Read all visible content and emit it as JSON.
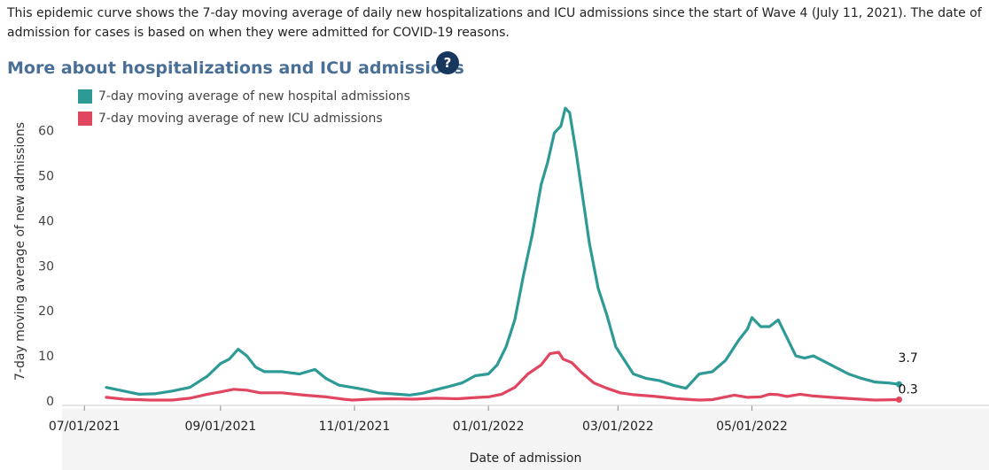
{
  "intro": "This epidemic curve shows the 7-day moving average of daily new hospitalizations and ICU admissions since the start of Wave 4 (July 11, 2021). The date of admission for cases is based on when they were admitted for COVID-19 reasons.",
  "section_title": "More about hospitalizations and ICU admissions",
  "help_label": "?",
  "colors": {
    "hospital": "#2e9a96",
    "icu": "#e04660",
    "axis": "#bbbbbb",
    "tick_text": "#444444"
  },
  "chart_data": {
    "type": "line",
    "title": "More about hospitalizations and ICU admissions",
    "xlabel": "Date of admission",
    "ylabel": "7-day moving average of new admissions",
    "ylim": [
      0,
      67
    ],
    "yticks": [
      0,
      10,
      20,
      30,
      40,
      50,
      60
    ],
    "x_range": [
      0,
      383
    ],
    "xticks": [
      {
        "x": -10,
        "label": "07/01/2021"
      },
      {
        "x": 52,
        "label": "09/01/2021"
      },
      {
        "x": 113,
        "label": "11/01/2021"
      },
      {
        "x": 174,
        "label": "01/01/2022"
      },
      {
        "x": 233,
        "label": "03/01/2022"
      },
      {
        "x": 294,
        "label": "05/01/2022"
      }
    ],
    "x_unit": "days since 07/11/2021",
    "grid": false,
    "legend_position": "top-left",
    "series": [
      {
        "name": "7-day moving average of new hospital admissions",
        "end_label": "3.7",
        "points": [
          [
            0,
            3
          ],
          [
            8,
            2.2
          ],
          [
            15,
            1.5
          ],
          [
            22,
            1.6
          ],
          [
            30,
            2.2
          ],
          [
            38,
            3
          ],
          [
            46,
            5.5
          ],
          [
            52,
            8.3
          ],
          [
            56,
            9.3
          ],
          [
            60,
            11.5
          ],
          [
            64,
            10
          ],
          [
            68,
            7.5
          ],
          [
            72,
            6.5
          ],
          [
            80,
            6.5
          ],
          [
            88,
            6
          ],
          [
            95,
            7
          ],
          [
            100,
            5
          ],
          [
            106,
            3.5
          ],
          [
            112,
            3
          ],
          [
            118,
            2.5
          ],
          [
            124,
            1.8
          ],
          [
            130,
            1.6
          ],
          [
            138,
            1.3
          ],
          [
            144,
            1.7
          ],
          [
            150,
            2.5
          ],
          [
            156,
            3.2
          ],
          [
            162,
            4
          ],
          [
            168,
            5.6
          ],
          [
            174,
            6
          ],
          [
            178,
            8
          ],
          [
            182,
            12
          ],
          [
            186,
            18
          ],
          [
            190,
            28
          ],
          [
            194,
            37
          ],
          [
            198,
            48
          ],
          [
            201,
            53
          ],
          [
            204,
            59.5
          ],
          [
            207,
            61
          ],
          [
            209,
            65
          ],
          [
            211,
            64
          ],
          [
            214,
            55
          ],
          [
            217,
            45
          ],
          [
            220,
            35
          ],
          [
            224,
            25
          ],
          [
            228,
            19
          ],
          [
            232,
            12
          ],
          [
            236,
            9
          ],
          [
            240,
            6
          ],
          [
            246,
            5
          ],
          [
            252,
            4.5
          ],
          [
            258,
            3.5
          ],
          [
            264,
            2.8
          ],
          [
            270,
            6
          ],
          [
            276,
            6.5
          ],
          [
            282,
            9
          ],
          [
            288,
            13.5
          ],
          [
            292,
            16
          ],
          [
            294,
            18.5
          ],
          [
            298,
            16.5
          ],
          [
            302,
            16.5
          ],
          [
            306,
            18
          ],
          [
            310,
            14
          ],
          [
            314,
            10
          ],
          [
            318,
            9.5
          ],
          [
            322,
            10
          ],
          [
            328,
            8.5
          ],
          [
            332,
            7.5
          ],
          [
            338,
            6
          ],
          [
            344,
            5
          ],
          [
            350,
            4.2
          ],
          [
            356,
            4
          ],
          [
            361,
            3.7
          ]
        ]
      },
      {
        "name": "7-day moving average of new ICU admissions",
        "end_label": "0.3",
        "points": [
          [
            0,
            0.8
          ],
          [
            8,
            0.4
          ],
          [
            20,
            0.2
          ],
          [
            30,
            0.2
          ],
          [
            38,
            0.6
          ],
          [
            46,
            1.5
          ],
          [
            52,
            2
          ],
          [
            58,
            2.6
          ],
          [
            64,
            2.4
          ],
          [
            70,
            1.8
          ],
          [
            80,
            1.8
          ],
          [
            90,
            1.3
          ],
          [
            100,
            0.9
          ],
          [
            108,
            0.4
          ],
          [
            112,
            0.2
          ],
          [
            120,
            0.4
          ],
          [
            130,
            0.5
          ],
          [
            140,
            0.4
          ],
          [
            150,
            0.6
          ],
          [
            160,
            0.5
          ],
          [
            170,
            0.8
          ],
          [
            174,
            0.9
          ],
          [
            180,
            1.5
          ],
          [
            186,
            3
          ],
          [
            192,
            6
          ],
          [
            198,
            8
          ],
          [
            202,
            10.5
          ],
          [
            206,
            10.8
          ],
          [
            208,
            9.3
          ],
          [
            212,
            8.5
          ],
          [
            216,
            6.5
          ],
          [
            222,
            4
          ],
          [
            228,
            2.8
          ],
          [
            234,
            1.8
          ],
          [
            240,
            1.4
          ],
          [
            250,
            1
          ],
          [
            260,
            0.5
          ],
          [
            270,
            0.2
          ],
          [
            276,
            0.3
          ],
          [
            282,
            0.9
          ],
          [
            286,
            1.3
          ],
          [
            292,
            0.8
          ],
          [
            298,
            0.9
          ],
          [
            302,
            1.5
          ],
          [
            306,
            1.4
          ],
          [
            310,
            1
          ],
          [
            316,
            1.5
          ],
          [
            322,
            1.1
          ],
          [
            330,
            0.8
          ],
          [
            340,
            0.5
          ],
          [
            350,
            0.2
          ],
          [
            361,
            0.3
          ]
        ]
      }
    ]
  }
}
